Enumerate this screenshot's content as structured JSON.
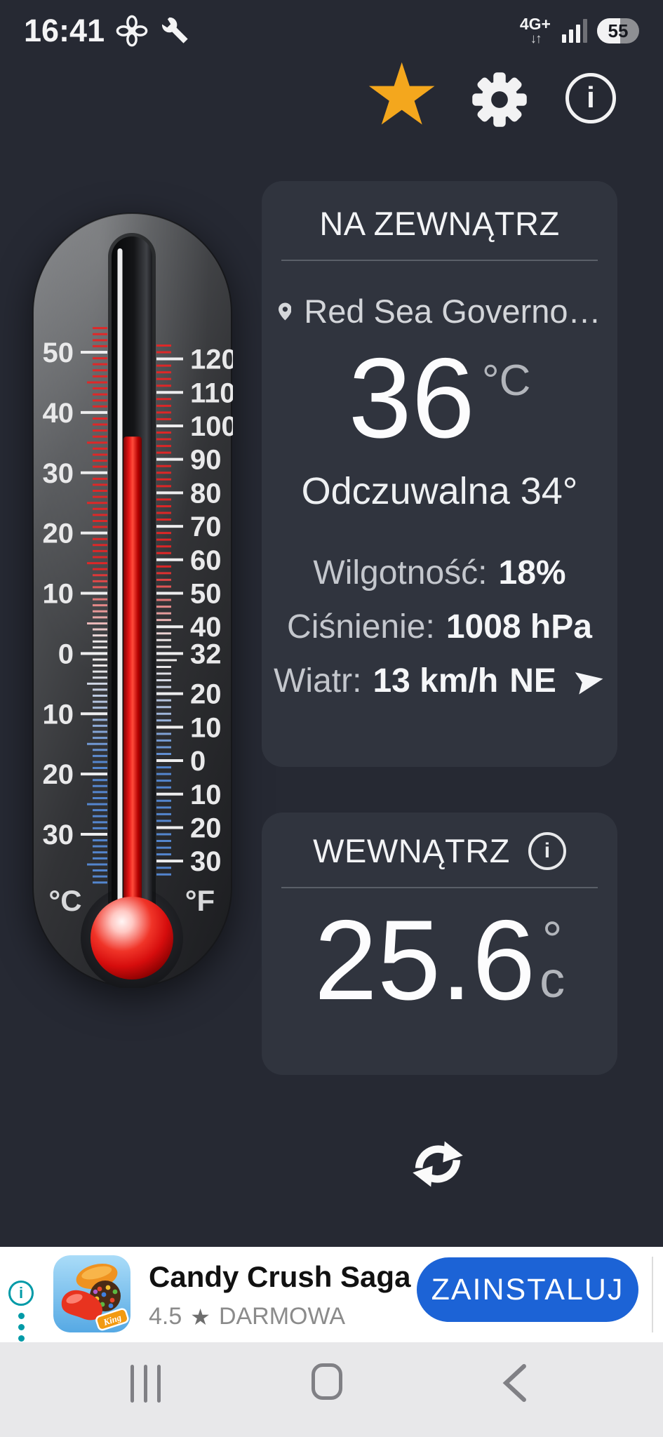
{
  "status": {
    "time": "16:41",
    "network": "4G+",
    "network_arrows": "↓↑",
    "battery": "55"
  },
  "colors": {
    "accent_star": "#f4a71d",
    "card_bg": "#30343e",
    "page_bg": "#262933",
    "install_blue": "#1c63d6",
    "adchoices_teal": "#009aa7",
    "mercury_red": "#e61414"
  },
  "outside": {
    "title": "NA ZEWNĄTRZ",
    "location": "Red Sea Governo…",
    "temp": "36",
    "temp_unit": "°C",
    "feels": "Odczuwalna 34°",
    "details": [
      {
        "label": "Wilgotność:",
        "value": "18%"
      },
      {
        "label": "Ciśnienie:",
        "value": "1008 hPa"
      },
      {
        "label": "Wiatr:",
        "value": "13 km/h",
        "direction": "NE"
      }
    ]
  },
  "inside": {
    "title": "WEWNĄTRZ",
    "temp": "25.6",
    "unit_degree": "°",
    "unit_letter": "c"
  },
  "thermometer": {
    "value_c": 36,
    "c_scale": {
      "unit": "°C",
      "labels": [
        50,
        40,
        30,
        20,
        10,
        0,
        -10,
        -20,
        -30
      ]
    },
    "f_scale": {
      "unit": "°F",
      "labels": [
        120,
        110,
        100,
        90,
        80,
        70,
        60,
        50,
        40,
        32,
        20,
        10,
        0,
        -10,
        -20,
        -30
      ]
    }
  },
  "ad": {
    "title": "Candy Crush Saga",
    "rating": "4.5",
    "rating_star": "★",
    "price": "DARMOWA",
    "cta": "ZAINSTALUJ",
    "info_letter": "i"
  }
}
